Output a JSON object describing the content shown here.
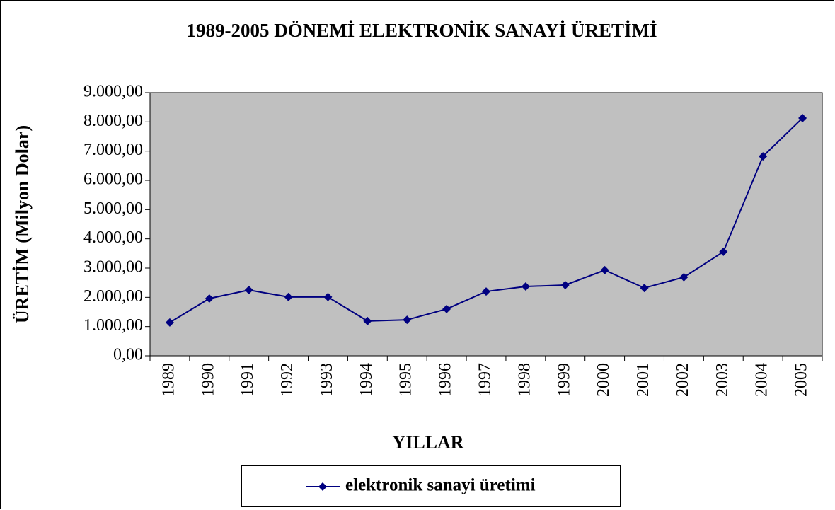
{
  "chart_data": {
    "type": "line",
    "title": "1989-2005 DÖNEMİ ELEKTRONİK SANAYİ ÜRETİMİ",
    "x_label": "YILLAR",
    "y_label": "ÜRETİM (Milyon Dolar)",
    "categories": [
      "1989",
      "1990",
      "1991",
      "1992",
      "1993",
      "1994",
      "1995",
      "1996",
      "1997",
      "1998",
      "1999",
      "2000",
      "2001",
      "2002",
      "2003",
      "2004",
      "2005"
    ],
    "series": [
      {
        "name": "elektronik sanayi üretimi",
        "color": "#000080",
        "values": [
          1140,
          1960,
          2250,
          2010,
          2010,
          1190,
          1230,
          1600,
          2200,
          2370,
          2420,
          2930,
          2320,
          2690,
          3560,
          6820,
          8130
        ]
      }
    ],
    "ylim": [
      0,
      9000
    ],
    "yticks": [
      {
        "value": 0,
        "label": "0,00"
      },
      {
        "value": 1000,
        "label": "1.000,00"
      },
      {
        "value": 2000,
        "label": "2.000,00"
      },
      {
        "value": 3000,
        "label": "3.000,00"
      },
      {
        "value": 4000,
        "label": "4.000,00"
      },
      {
        "value": 5000,
        "label": "5.000,00"
      },
      {
        "value": 6000,
        "label": "6.000,00"
      },
      {
        "value": 7000,
        "label": "7.000,00"
      },
      {
        "value": 8000,
        "label": "8.000,00"
      },
      {
        "value": 9000,
        "label": "9.000,00"
      }
    ],
    "plot_background": "#c0c0c0",
    "legend": "bottom"
  }
}
